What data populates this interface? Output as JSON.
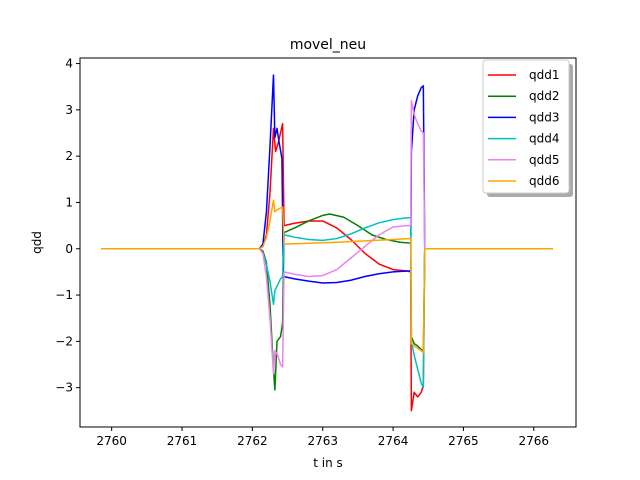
{
  "chart_data": {
    "type": "line",
    "title": "movel_neu",
    "xlabel": "t in s",
    "ylabel": "qdd",
    "xlim": [
      2759.55,
      2766.6
    ],
    "ylim": [
      -3.85,
      4.12
    ],
    "xticks": [
      2760,
      2761,
      2762,
      2763,
      2764,
      2765,
      2766
    ],
    "yticks": [
      -3,
      -2,
      -1,
      0,
      1,
      2,
      3,
      4
    ],
    "grid": false,
    "legend_position": "upper right",
    "series": [
      {
        "name": "qdd1",
        "color": "#ff0000",
        "points": [
          [
            2759.85,
            0
          ],
          [
            2762.1,
            0
          ],
          [
            2762.15,
            0.05
          ],
          [
            2762.2,
            0.3
          ],
          [
            2762.25,
            1.2
          ],
          [
            2762.3,
            2.6
          ],
          [
            2762.33,
            2.1
          ],
          [
            2762.37,
            2.3
          ],
          [
            2762.4,
            2.5
          ],
          [
            2762.43,
            2.7
          ],
          [
            2762.45,
            0.5
          ],
          [
            2762.6,
            0.55
          ],
          [
            2762.8,
            0.6
          ],
          [
            2763.0,
            0.6
          ],
          [
            2763.2,
            0.45
          ],
          [
            2763.4,
            0.2
          ],
          [
            2763.6,
            -0.1
          ],
          [
            2763.8,
            -0.33
          ],
          [
            2764.0,
            -0.45
          ],
          [
            2764.2,
            -0.48
          ],
          [
            2764.25,
            -0.5
          ],
          [
            2764.26,
            -3.5
          ],
          [
            2764.3,
            -3.1
          ],
          [
            2764.35,
            -3.2
          ],
          [
            2764.4,
            -3.1
          ],
          [
            2764.43,
            -2.95
          ],
          [
            2764.45,
            0
          ],
          [
            2766.27,
            0
          ]
        ]
      },
      {
        "name": "qdd2",
        "color": "#008000",
        "points": [
          [
            2759.85,
            0
          ],
          [
            2762.1,
            0
          ],
          [
            2762.15,
            -0.05
          ],
          [
            2762.2,
            -0.3
          ],
          [
            2762.25,
            -1.2
          ],
          [
            2762.3,
            -2.6
          ],
          [
            2762.32,
            -3.05
          ],
          [
            2762.35,
            -2.0
          ],
          [
            2762.4,
            -1.9
          ],
          [
            2762.43,
            -1.6
          ],
          [
            2762.45,
            0.35
          ],
          [
            2762.6,
            0.45
          ],
          [
            2762.8,
            0.6
          ],
          [
            2763.0,
            0.72
          ],
          [
            2763.1,
            0.75
          ],
          [
            2763.3,
            0.68
          ],
          [
            2763.5,
            0.5
          ],
          [
            2763.7,
            0.3
          ],
          [
            2763.9,
            0.2
          ],
          [
            2764.1,
            0.14
          ],
          [
            2764.25,
            0.12
          ],
          [
            2764.26,
            -1.9
          ],
          [
            2764.3,
            -2.05
          ],
          [
            2764.35,
            -2.1
          ],
          [
            2764.4,
            -2.18
          ],
          [
            2764.43,
            -2.2
          ],
          [
            2764.45,
            0
          ],
          [
            2766.27,
            0
          ]
        ]
      },
      {
        "name": "qdd3",
        "color": "#0000ff",
        "points": [
          [
            2759.85,
            0
          ],
          [
            2762.1,
            0
          ],
          [
            2762.15,
            0.1
          ],
          [
            2762.2,
            0.8
          ],
          [
            2762.25,
            2.2
          ],
          [
            2762.3,
            3.75
          ],
          [
            2762.32,
            2.4
          ],
          [
            2762.35,
            2.6
          ],
          [
            2762.38,
            2.3
          ],
          [
            2762.42,
            1.95
          ],
          [
            2762.44,
            -0.6
          ],
          [
            2762.6,
            -0.65
          ],
          [
            2762.8,
            -0.7
          ],
          [
            2763.0,
            -0.74
          ],
          [
            2763.2,
            -0.73
          ],
          [
            2763.4,
            -0.68
          ],
          [
            2763.6,
            -0.6
          ],
          [
            2763.8,
            -0.54
          ],
          [
            2764.0,
            -0.5
          ],
          [
            2764.2,
            -0.48
          ],
          [
            2764.25,
            -0.48
          ],
          [
            2764.26,
            2.1
          ],
          [
            2764.3,
            3.0
          ],
          [
            2764.35,
            3.3
          ],
          [
            2764.4,
            3.48
          ],
          [
            2764.43,
            3.52
          ],
          [
            2764.45,
            0
          ],
          [
            2766.27,
            0
          ]
        ]
      },
      {
        "name": "qdd4",
        "color": "#00bfbf",
        "points": [
          [
            2759.85,
            0
          ],
          [
            2762.1,
            0
          ],
          [
            2762.15,
            -0.1
          ],
          [
            2762.2,
            -0.35
          ],
          [
            2762.25,
            -0.7
          ],
          [
            2762.3,
            -1.2
          ],
          [
            2762.32,
            -0.9
          ],
          [
            2762.36,
            -0.78
          ],
          [
            2762.4,
            -0.65
          ],
          [
            2762.43,
            -0.6
          ],
          [
            2762.45,
            0.3
          ],
          [
            2762.6,
            0.25
          ],
          [
            2762.8,
            0.2
          ],
          [
            2763.0,
            0.18
          ],
          [
            2763.2,
            0.22
          ],
          [
            2763.4,
            0.32
          ],
          [
            2763.6,
            0.45
          ],
          [
            2763.8,
            0.56
          ],
          [
            2764.0,
            0.63
          ],
          [
            2764.2,
            0.67
          ],
          [
            2764.25,
            0.67
          ],
          [
            2764.26,
            -2.0
          ],
          [
            2764.3,
            -2.3
          ],
          [
            2764.35,
            -2.6
          ],
          [
            2764.4,
            -2.9
          ],
          [
            2764.43,
            -3.0
          ],
          [
            2764.45,
            0
          ],
          [
            2766.27,
            0
          ]
        ]
      },
      {
        "name": "qdd5",
        "color": "#ee82ee",
        "points": [
          [
            2759.85,
            0
          ],
          [
            2762.1,
            0
          ],
          [
            2762.15,
            -0.1
          ],
          [
            2762.2,
            -0.6
          ],
          [
            2762.25,
            -1.5
          ],
          [
            2762.3,
            -2.7
          ],
          [
            2762.32,
            -2.2
          ],
          [
            2762.36,
            -2.3
          ],
          [
            2762.4,
            -2.5
          ],
          [
            2762.43,
            -2.55
          ],
          [
            2762.45,
            -0.5
          ],
          [
            2762.6,
            -0.55
          ],
          [
            2762.8,
            -0.6
          ],
          [
            2763.0,
            -0.58
          ],
          [
            2763.2,
            -0.45
          ],
          [
            2763.4,
            -0.2
          ],
          [
            2763.6,
            0.05
          ],
          [
            2763.8,
            0.3
          ],
          [
            2764.0,
            0.47
          ],
          [
            2764.2,
            0.5
          ],
          [
            2764.25,
            0.5
          ],
          [
            2764.26,
            3.2
          ],
          [
            2764.3,
            2.9
          ],
          [
            2764.35,
            2.7
          ],
          [
            2764.4,
            2.55
          ],
          [
            2764.43,
            2.5
          ],
          [
            2764.45,
            0
          ],
          [
            2766.27,
            0
          ]
        ]
      },
      {
        "name": "qdd6",
        "color": "#ffa500",
        "points": [
          [
            2759.85,
            0
          ],
          [
            2762.1,
            0
          ],
          [
            2762.15,
            0.05
          ],
          [
            2762.2,
            0.25
          ],
          [
            2762.25,
            0.6
          ],
          [
            2762.3,
            1.05
          ],
          [
            2762.32,
            0.8
          ],
          [
            2762.36,
            0.85
          ],
          [
            2762.4,
            0.88
          ],
          [
            2762.43,
            0.9
          ],
          [
            2762.45,
            0.1
          ],
          [
            2762.8,
            0.12
          ],
          [
            2763.2,
            0.14
          ],
          [
            2763.6,
            0.17
          ],
          [
            2764.0,
            0.2
          ],
          [
            2764.25,
            0.22
          ],
          [
            2764.26,
            -2.05
          ],
          [
            2764.3,
            -2.1
          ],
          [
            2764.35,
            -2.15
          ],
          [
            2764.4,
            -2.2
          ],
          [
            2764.43,
            -2.25
          ],
          [
            2764.45,
            0
          ],
          [
            2766.27,
            0
          ]
        ]
      }
    ]
  }
}
